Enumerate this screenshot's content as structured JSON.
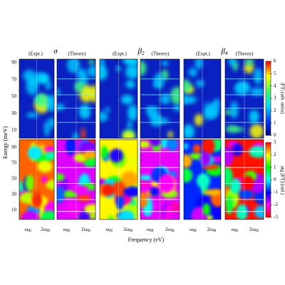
{
  "figure": {
    "y_label": "Energy (meV)",
    "x_label": "Frequency (eV)",
    "groups": [
      {
        "symbol": "σ",
        "expt": "(Expt.)",
        "theory": "(Theory)"
      },
      {
        "symbol": "β",
        "sub": "2",
        "expt": "(Expt.)",
        "theory": "(Theory)"
      },
      {
        "symbol": "β",
        "sub": "4",
        "expt": "(Expt.)",
        "theory": "(Theory)"
      }
    ],
    "yticks": [
      10,
      30,
      50,
      70,
      90
    ],
    "colorbars": [
      {
        "label": "|FT| (arb. units)",
        "ticks": [
          0,
          1,
          2,
          3,
          4,
          5,
          6
        ]
      },
      {
        "label": "arg [FT] (rad.)",
        "ticks": [
          -3,
          -2,
          -1,
          0,
          1,
          2,
          3
        ]
      }
    ],
    "x_labels": [
      [
        {
          "main": "ω",
          "sub": "IR"
        },
        {
          "main": "2ω",
          "sub": "IR"
        }
      ],
      [
        {
          "main": "ω",
          "sub": "IR"
        },
        {
          "main": "2ω",
          "sub": "IR"
        }
      ],
      [
        {
          "main": "ω",
          "sub": "IR"
        },
        {
          "main": "2ω",
          "sub": "IR"
        }
      ],
      [
        {
          "main": "ω",
          "sub": "IR"
        },
        {
          "main": "2ω",
          "sub": "IR"
        }
      ],
      [
        {
          "main": "ω",
          "sub": "IR"
        },
        {
          "main": "2ω",
          "sub": "IR"
        }
      ],
      [
        {
          "main": "ω",
          "sub": "IR"
        },
        {
          "main": "2ω",
          "sub": "IR"
        }
      ]
    ]
  }
}
